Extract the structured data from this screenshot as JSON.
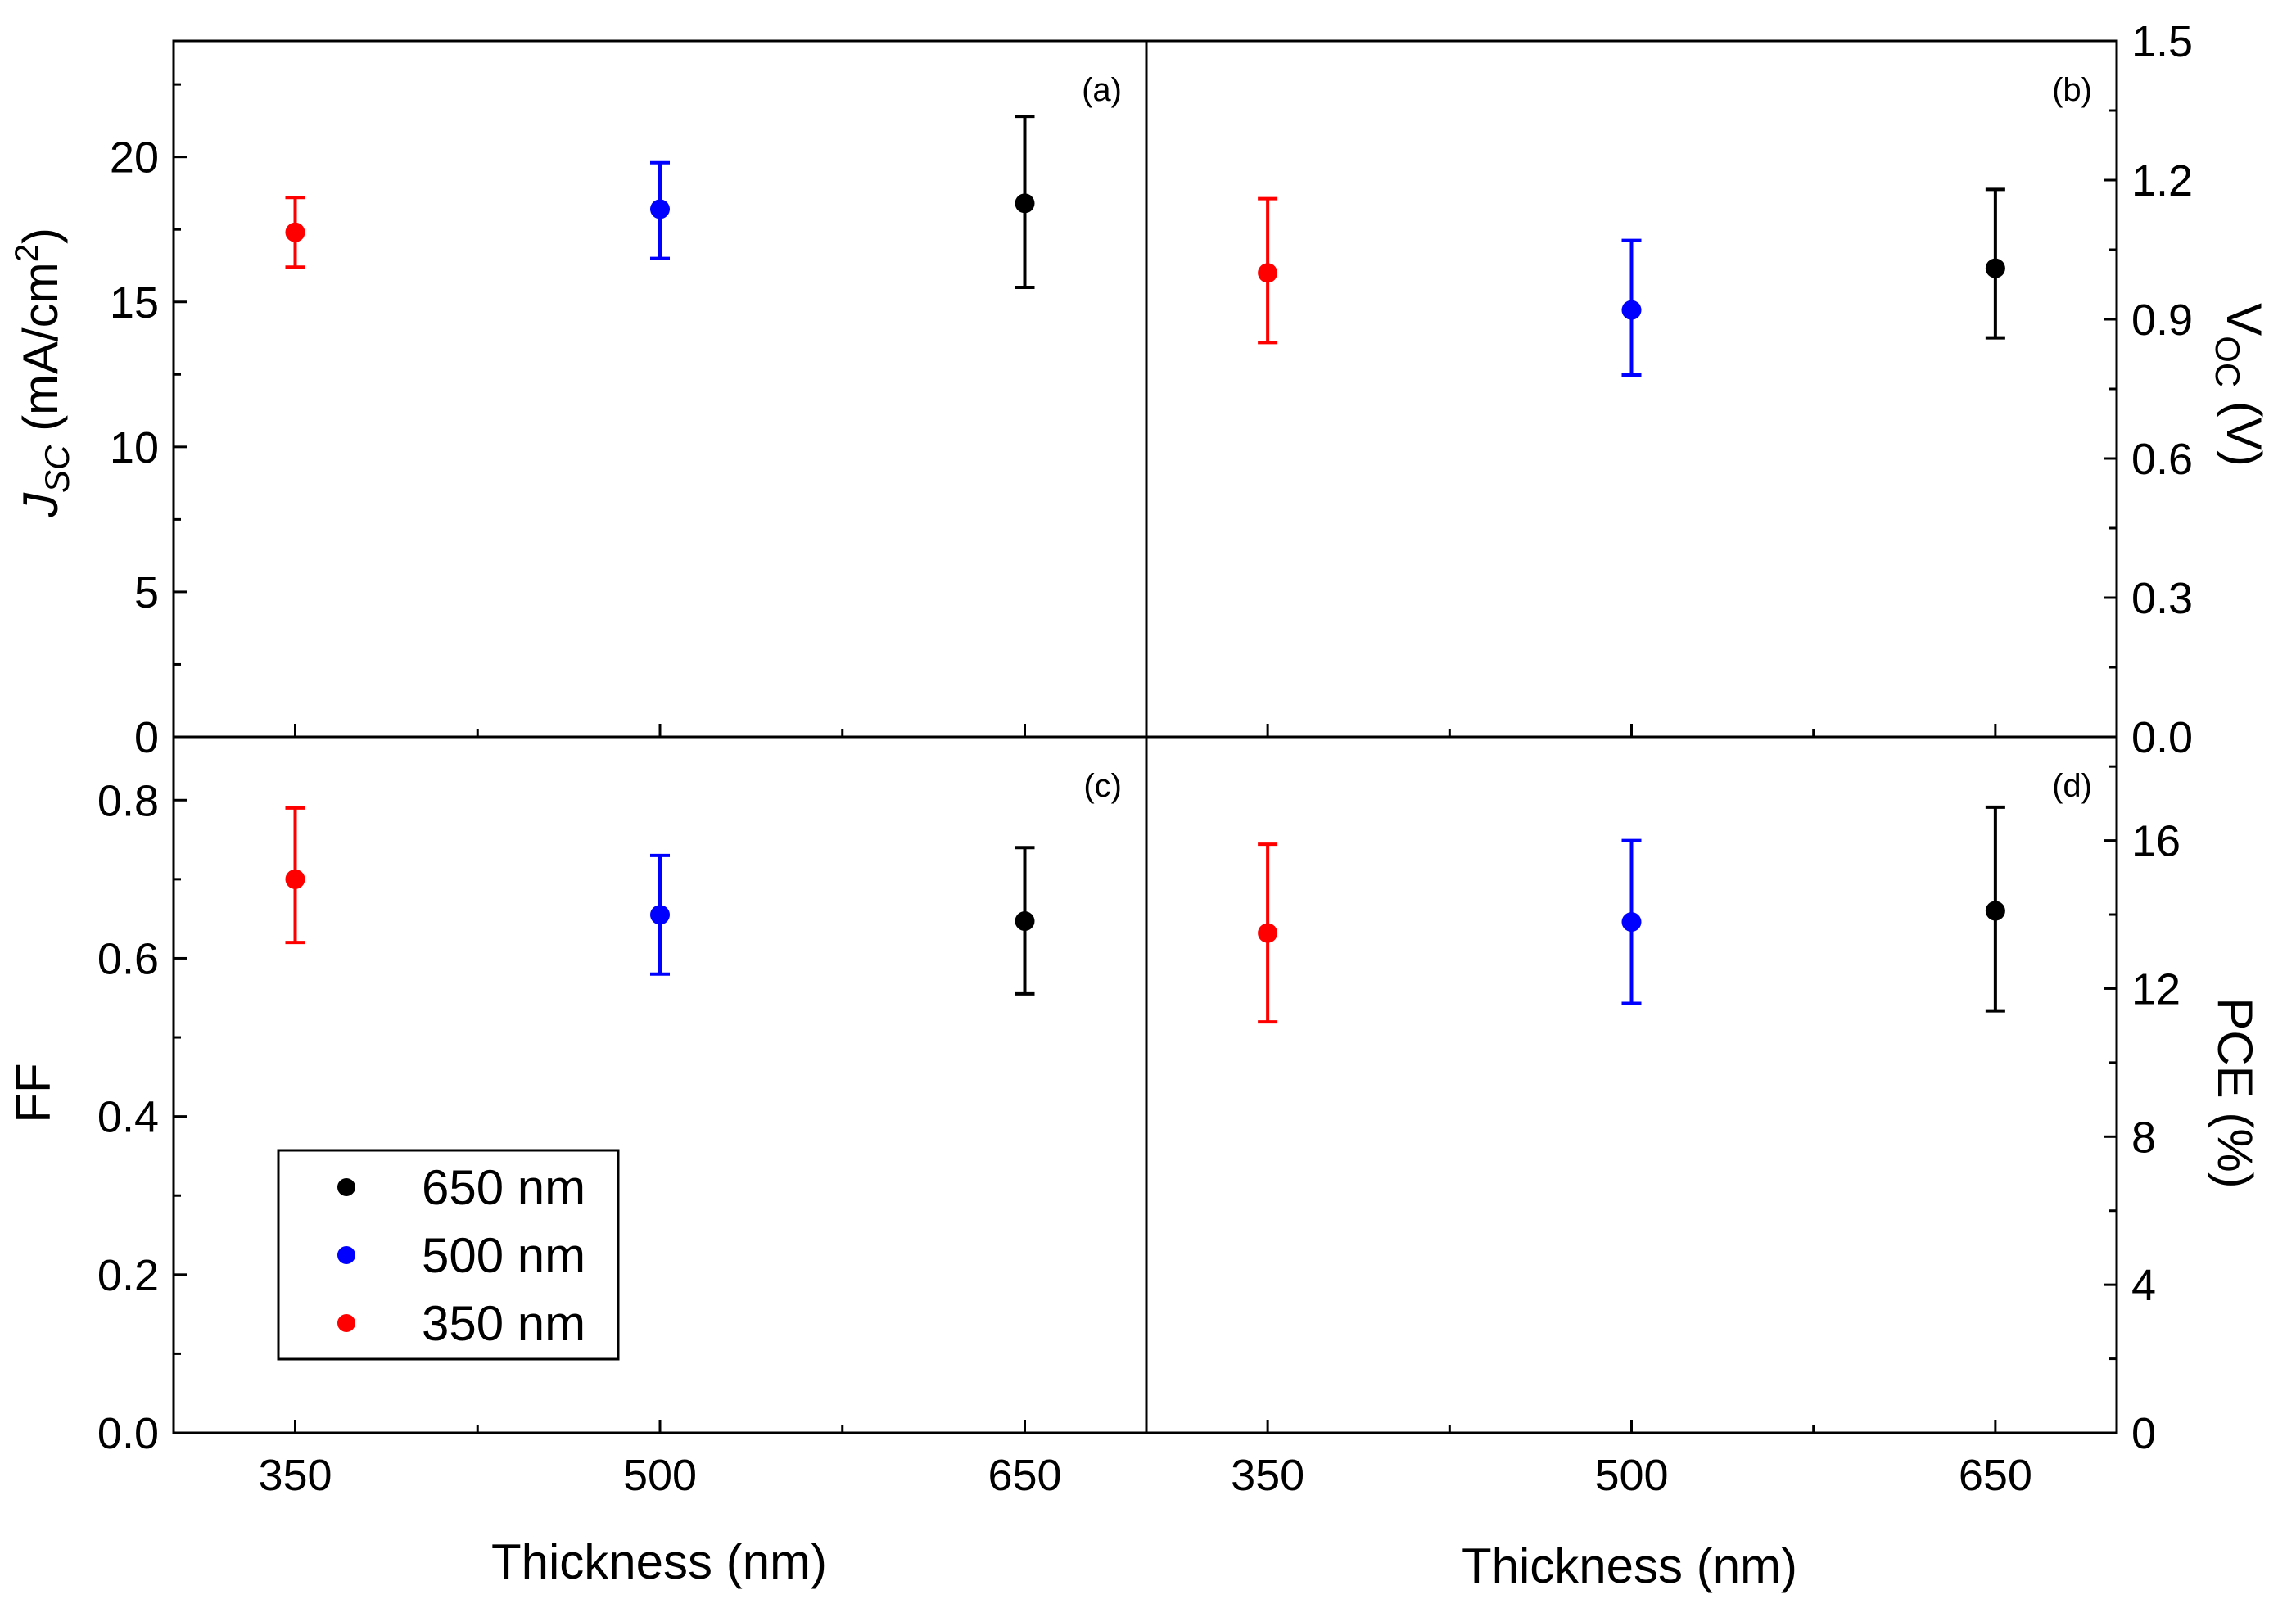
{
  "chart_data": {
    "type": "scatter",
    "title": "",
    "xlabel": "Thickness (nm)",
    "x_ticks": [
      "350",
      "500",
      "650"
    ],
    "x_range": [
      300,
      700
    ],
    "legend": {
      "placement": "bottom-left of panel (c)",
      "entries": [
        {
          "label": "650 nm",
          "color": "#000000"
        },
        {
          "label": "500 nm",
          "color": "#0000ff"
        },
        {
          "label": "350 nm",
          "color": "#ff0000"
        }
      ]
    },
    "panels": [
      {
        "id": "a",
        "tag": "(a)",
        "ylabel_main": "J",
        "ylabel_sub": "SC",
        "ylabel_rest": " (mA/cm",
        "ylabel_sup": "2",
        "ylabel_end": ")",
        "ylim": [
          0,
          24
        ],
        "yticks": [
          "0",
          "5",
          "10",
          "15",
          "20"
        ],
        "points": [
          {
            "x": 350,
            "y": 17.4,
            "err_low": 16.2,
            "err_high": 18.6,
            "color": "#ff0000"
          },
          {
            "x": 500,
            "y": 18.2,
            "err_low": 16.5,
            "err_high": 19.8,
            "color": "#0000ff"
          },
          {
            "x": 650,
            "y": 18.4,
            "err_low": 15.5,
            "err_high": 21.4,
            "color": "#000000"
          }
        ]
      },
      {
        "id": "b",
        "tag": "(b)",
        "ylabel_main": "V",
        "ylabel_sub": "OC",
        "ylabel_rest": " (V)",
        "ylim": [
          0,
          1.5
        ],
        "yticks": [
          "0.0",
          "0.3",
          "0.6",
          "0.9",
          "1.2",
          "1.5"
        ],
        "points": [
          {
            "x": 350,
            "y": 1.0,
            "err_low": 0.85,
            "err_high": 1.16,
            "color": "#ff0000"
          },
          {
            "x": 500,
            "y": 0.92,
            "err_low": 0.78,
            "err_high": 1.07,
            "color": "#0000ff"
          },
          {
            "x": 650,
            "y": 1.01,
            "err_low": 0.86,
            "err_high": 1.18,
            "color": "#000000"
          }
        ]
      },
      {
        "id": "c",
        "tag": "(c)",
        "ylabel_main": "FF",
        "ylim": [
          0,
          0.88
        ],
        "yticks": [
          "0.0",
          "0.2",
          "0.4",
          "0.6",
          "0.8"
        ],
        "points": [
          {
            "x": 350,
            "y": 0.7,
            "err_low": 0.62,
            "err_high": 0.79,
            "color": "#ff0000"
          },
          {
            "x": 500,
            "y": 0.655,
            "err_low": 0.58,
            "err_high": 0.73,
            "color": "#0000ff"
          },
          {
            "x": 650,
            "y": 0.647,
            "err_low": 0.555,
            "err_high": 0.74,
            "color": "#000000"
          }
        ]
      },
      {
        "id": "d",
        "tag": "(d)",
        "ylabel_main": "PCE (%)",
        "ylim": [
          0,
          18.8
        ],
        "yticks": [
          "0",
          "4",
          "8",
          "12",
          "16"
        ],
        "points": [
          {
            "x": 350,
            "y": 13.5,
            "err_low": 11.1,
            "err_high": 15.9,
            "color": "#ff0000"
          },
          {
            "x": 500,
            "y": 13.8,
            "err_low": 11.6,
            "err_high": 16.0,
            "color": "#0000ff"
          },
          {
            "x": 650,
            "y": 14.1,
            "err_low": 11.4,
            "err_high": 16.9,
            "color": "#000000"
          }
        ]
      }
    ]
  }
}
